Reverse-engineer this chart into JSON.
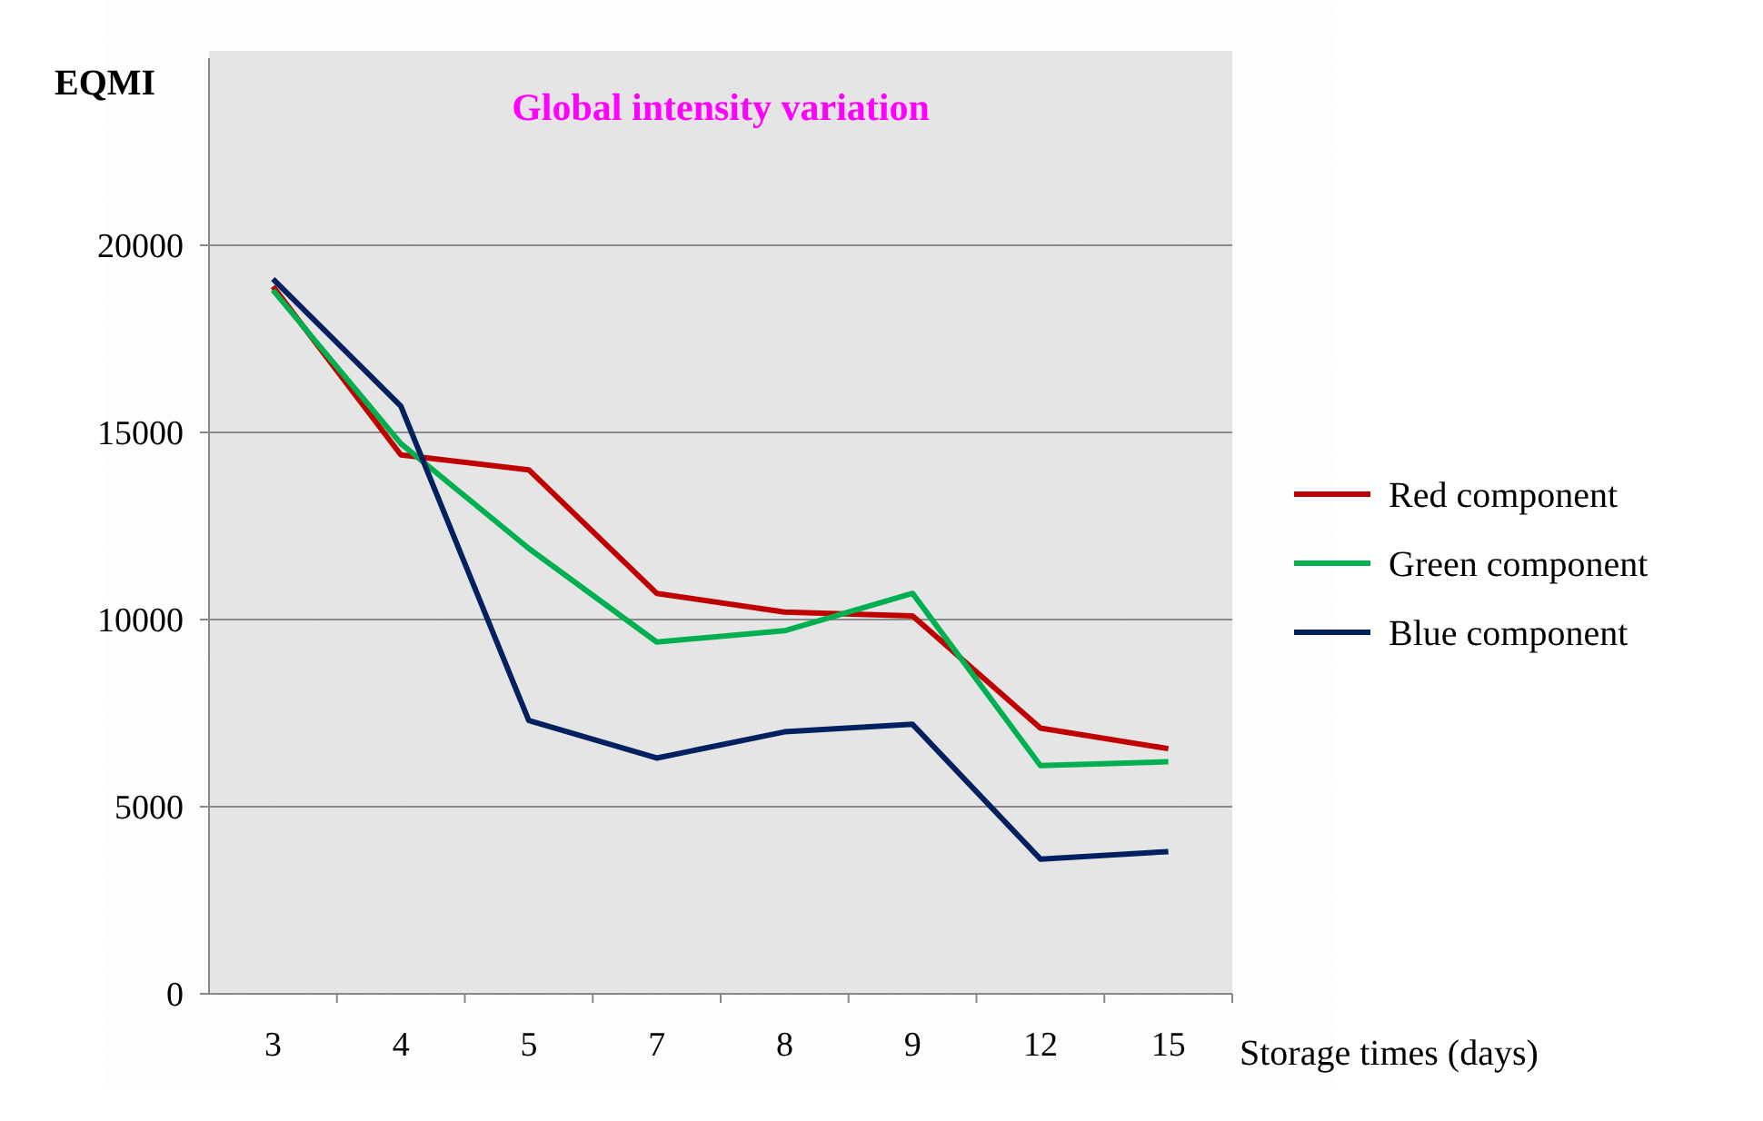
{
  "chart_data": {
    "type": "line",
    "title": "Global intensity variation",
    "xlabel": "Storage times (days)",
    "ylabel": "EQMI",
    "categories": [
      "3",
      "4",
      "5",
      "7",
      "8",
      "9",
      "12",
      "15"
    ],
    "series": [
      {
        "name": "Red component",
        "color": "#c00000",
        "values": [
          18900,
          14400,
          14000,
          10700,
          10200,
          10100,
          7100,
          6550
        ]
      },
      {
        "name": "Green component",
        "color": "#00b050",
        "values": [
          18800,
          14700,
          11900,
          9400,
          9700,
          10700,
          6100,
          6200
        ]
      },
      {
        "name": "Blue component",
        "color": "#002060",
        "values": [
          19100,
          15700,
          7300,
          6300,
          7000,
          7200,
          3600,
          3800
        ]
      }
    ],
    "ylim": [
      0,
      25000
    ],
    "yticks": [
      0,
      5000,
      10000,
      15000,
      20000
    ],
    "grid": "y",
    "legend": "right",
    "marker": "none",
    "line_style": "solid"
  }
}
